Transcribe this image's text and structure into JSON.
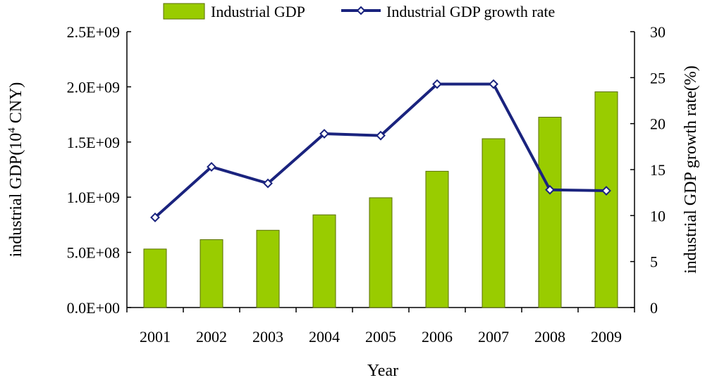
{
  "chart_data": {
    "type": "bar+line",
    "title": "",
    "categories": [
      "2001",
      "2002",
      "2003",
      "2004",
      "2005",
      "2006",
      "2007",
      "2008",
      "2009"
    ],
    "series": [
      {
        "name": "Industrial GDP",
        "type": "bar",
        "axis": "left",
        "color": "#99cc00",
        "edge_color": "#5a6e00",
        "values": [
          530000000,
          615000000,
          700000000,
          840000000,
          995000000,
          1235000000,
          1530000000,
          1725000000,
          1955000000
        ]
      },
      {
        "name": "Industrial GDP growth rate",
        "type": "line",
        "axis": "right",
        "color": "#1a237e",
        "marker": "diamond-open",
        "values": [
          9.8,
          15.3,
          13.5,
          18.9,
          18.7,
          24.3,
          24.3,
          12.8,
          12.7
        ]
      }
    ],
    "xlabel": "Year",
    "ylabel_left_main": "industrial GDP(10",
    "ylabel_left_sup": "4",
    "ylabel_left_tail": " CNY)",
    "ylabel_right": "industrial GDP growth rate(%)",
    "ylim_left": [
      0,
      2500000000
    ],
    "ylim_right": [
      0,
      30
    ],
    "yticks_left": [
      {
        "value": 0,
        "label": "0.0E+00"
      },
      {
        "value": 500000000,
        "label": "5.0E+08"
      },
      {
        "value": 1000000000,
        "label": "1.0E+09"
      },
      {
        "value": 1500000000,
        "label": "1.5E+09"
      },
      {
        "value": 2000000000,
        "label": "2.0E+09"
      },
      {
        "value": 2500000000,
        "label": "2.5E+09"
      }
    ],
    "yticks_right": [
      {
        "value": 0,
        "label": "0"
      },
      {
        "value": 5,
        "label": "5"
      },
      {
        "value": 10,
        "label": "10"
      },
      {
        "value": 15,
        "label": "15"
      },
      {
        "value": 20,
        "label": "20"
      },
      {
        "value": 25,
        "label": "25"
      },
      {
        "value": 30,
        "label": "30"
      }
    ],
    "legend": {
      "position": "top-center",
      "labels": [
        "Industrial GDP",
        "Industrial GDP growth rate"
      ]
    },
    "grid": false
  }
}
